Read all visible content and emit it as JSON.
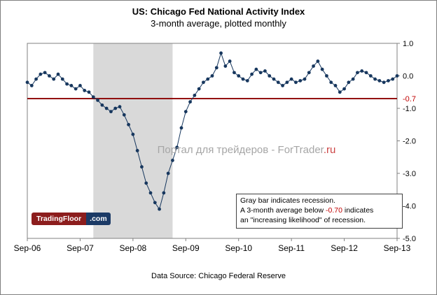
{
  "header": {
    "title": "US: Chicago Fed National Activity Index",
    "subtitle": "3-month average, plotted monthly"
  },
  "watermark": {
    "text": "Портал для трейдеров - ForTrader",
    "suffix": ".ru"
  },
  "logo": {
    "part1": "TradingFloor",
    "part2": ".com"
  },
  "annotation": {
    "line1": "Gray bar indicates recession.",
    "line2_pre": "A 3-month average below ",
    "line2_value": "-0.70",
    "line2_post": " indicates",
    "line3": "an \"increasing likelihood\" of recession."
  },
  "footer": {
    "source": "Data Source: Chicago Federal Reserve"
  },
  "chart_data": {
    "type": "line",
    "title": "US: Chicago Fed National Activity Index",
    "subtitle": "3-month average, plotted monthly",
    "x_frequency": "monthly from Sep-06 to Sep-13",
    "ylim": [
      -5.0,
      1.0
    ],
    "line_color": "#17375E",
    "marker_color": "#17375E",
    "threshold": {
      "value": -0.7,
      "label": "-0.7",
      "color": "#8B0000"
    },
    "recession_band": {
      "start_index": 15,
      "start_month": "Dec-07",
      "end_index": 33,
      "end_month": "Jun-09",
      "color": "#D9D9D9"
    },
    "x_ticks": [
      {
        "index": 0,
        "label": "Sep-06"
      },
      {
        "index": 12,
        "label": "Sep-07"
      },
      {
        "index": 24,
        "label": "Sep-08"
      },
      {
        "index": 36,
        "label": "Sep-09"
      },
      {
        "index": 48,
        "label": "Sep-10"
      },
      {
        "index": 60,
        "label": "Sep-11"
      },
      {
        "index": 72,
        "label": "Sep-12"
      },
      {
        "index": 84,
        "label": "Sep-13"
      }
    ],
    "y_ticks": [
      {
        "value": 1.0,
        "label": "1.0"
      },
      {
        "value": 0.0,
        "label": "0.0"
      },
      {
        "value": -1.0,
        "label": "-1.0"
      },
      {
        "value": -2.0,
        "label": "-2.0"
      },
      {
        "value": -3.0,
        "label": "-3.0"
      },
      {
        "value": -4.0,
        "label": "-4.0"
      },
      {
        "value": -5.0,
        "label": "-5.0"
      }
    ],
    "values": [
      -0.2,
      -0.3,
      -0.1,
      0.05,
      0.1,
      0.0,
      -0.1,
      0.05,
      -0.1,
      -0.25,
      -0.3,
      -0.4,
      -0.3,
      -0.45,
      -0.5,
      -0.65,
      -0.75,
      -0.9,
      -1.0,
      -1.1,
      -1.0,
      -0.95,
      -1.2,
      -1.5,
      -1.8,
      -2.3,
      -2.8,
      -3.3,
      -3.6,
      -3.9,
      -4.1,
      -3.6,
      -3.0,
      -2.6,
      -2.2,
      -1.6,
      -1.1,
      -0.8,
      -0.6,
      -0.4,
      -0.2,
      -0.1,
      0.0,
      0.25,
      0.7,
      0.3,
      0.45,
      0.1,
      0.0,
      -0.1,
      -0.15,
      0.05,
      0.2,
      0.1,
      0.15,
      0.0,
      -0.1,
      -0.2,
      -0.3,
      -0.2,
      -0.1,
      -0.2,
      -0.15,
      -0.1,
      0.1,
      0.3,
      0.45,
      0.2,
      0.0,
      -0.2,
      -0.3,
      -0.5,
      -0.4,
      -0.2,
      -0.1,
      0.1,
      0.15,
      0.1,
      0.0,
      -0.1,
      -0.15,
      -0.2,
      -0.15,
      -0.1,
      0.0
    ]
  }
}
